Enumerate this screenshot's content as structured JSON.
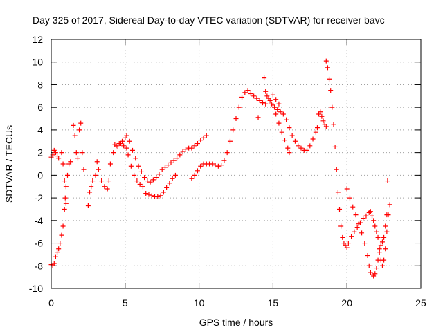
{
  "chart_data": {
    "type": "scatter",
    "title": "Day 325 of 2017, Sidereal Day-to-day VTEC variation (SDTVAR) for receiver bavc",
    "xlabel": "GPS time / hours",
    "ylabel": "SDTVAR / TECUs",
    "xlim": [
      0,
      25
    ],
    "ylim": [
      -10,
      12
    ],
    "xticks": [
      0,
      5,
      10,
      15,
      20,
      25
    ],
    "yticks": [
      -10,
      -8,
      -6,
      -4,
      -2,
      0,
      2,
      4,
      6,
      8,
      10,
      12
    ],
    "grid": true,
    "legend": "none",
    "marker": "plus",
    "color": "#ff0000",
    "series": [
      {
        "points": [
          [
            0.0,
            1.6
          ],
          [
            0.1,
            1.8
          ],
          [
            0.2,
            2.2
          ],
          [
            0.3,
            2.0
          ],
          [
            0.4,
            1.7
          ],
          [
            0.5,
            1.5
          ],
          [
            0.0,
            -7.9
          ],
          [
            0.1,
            -8.0
          ],
          [
            0.2,
            -7.8
          ],
          [
            0.3,
            -7.2
          ],
          [
            0.4,
            -6.8
          ],
          [
            0.5,
            -6.5
          ],
          [
            0.6,
            -6.0
          ],
          [
            0.7,
            -5.3
          ],
          [
            0.8,
            -4.5
          ],
          [
            0.9,
            -3.0
          ],
          [
            0.95,
            -2.0
          ],
          [
            1.0,
            -1.0
          ],
          [
            1.1,
            0.0
          ],
          [
            1.2,
            1.0
          ],
          [
            1.3,
            1.2
          ],
          [
            0.7,
            2.0
          ],
          [
            0.8,
            1.0
          ],
          [
            0.9,
            -0.5
          ],
          [
            1.0,
            -2.5
          ],
          [
            1.5,
            4.4
          ],
          [
            1.6,
            3.5
          ],
          [
            1.7,
            2.0
          ],
          [
            1.8,
            1.5
          ],
          [
            1.9,
            4.0
          ],
          [
            2.0,
            4.6
          ],
          [
            2.1,
            2.0
          ],
          [
            2.2,
            0.5
          ],
          [
            2.5,
            -2.7
          ],
          [
            2.6,
            -1.5
          ],
          [
            2.7,
            -1.0
          ],
          [
            2.8,
            -0.5
          ],
          [
            3.0,
            0.0
          ],
          [
            3.1,
            1.2
          ],
          [
            3.2,
            0.5
          ],
          [
            3.4,
            -0.5
          ],
          [
            3.6,
            -1.0
          ],
          [
            3.8,
            -1.2
          ],
          [
            3.9,
            -0.5
          ],
          [
            4.0,
            1.0
          ],
          [
            4.2,
            2.0
          ],
          [
            4.4,
            2.6
          ],
          [
            4.6,
            2.8
          ],
          [
            4.8,
            3.0
          ],
          [
            5.0,
            3.3
          ],
          [
            5.1,
            3.5
          ],
          [
            5.3,
            3.0
          ],
          [
            5.5,
            2.2
          ],
          [
            5.7,
            1.5
          ],
          [
            5.9,
            0.8
          ],
          [
            6.1,
            0.3
          ],
          [
            6.3,
            -0.2
          ],
          [
            6.5,
            -0.5
          ],
          [
            6.7,
            -0.6
          ],
          [
            6.9,
            -0.4
          ],
          [
            7.1,
            -0.2
          ],
          [
            7.3,
            0.1
          ],
          [
            7.5,
            0.5
          ],
          [
            7.7,
            0.7
          ],
          [
            7.9,
            0.9
          ],
          [
            8.1,
            1.1
          ],
          [
            8.3,
            1.3
          ],
          [
            8.5,
            1.5
          ],
          [
            8.7,
            1.8
          ],
          [
            8.9,
            2.1
          ],
          [
            9.1,
            2.3
          ],
          [
            9.3,
            2.4
          ],
          [
            9.5,
            2.4
          ],
          [
            9.7,
            2.6
          ],
          [
            9.9,
            2.8
          ],
          [
            10.1,
            3.1
          ],
          [
            10.3,
            3.3
          ],
          [
            10.5,
            3.5
          ],
          [
            4.3,
            2.7
          ],
          [
            4.5,
            2.5
          ],
          [
            4.7,
            2.8
          ],
          [
            4.9,
            2.6
          ],
          [
            5.1,
            2.4
          ],
          [
            5.2,
            1.8
          ],
          [
            5.4,
            0.8
          ],
          [
            5.6,
            0.0
          ],
          [
            5.8,
            -0.5
          ],
          [
            6.0,
            -0.8
          ],
          [
            6.2,
            -1.0
          ],
          [
            6.4,
            -1.6
          ],
          [
            6.6,
            -1.7
          ],
          [
            6.8,
            -1.8
          ],
          [
            7.0,
            -1.9
          ],
          [
            7.2,
            -1.9
          ],
          [
            7.4,
            -1.8
          ],
          [
            7.6,
            -1.5
          ],
          [
            7.8,
            -1.1
          ],
          [
            8.0,
            -0.7
          ],
          [
            8.2,
            -0.3
          ],
          [
            8.4,
            0.0
          ],
          [
            9.5,
            -0.3
          ],
          [
            9.7,
            0.0
          ],
          [
            9.9,
            0.4
          ],
          [
            10.1,
            0.8
          ],
          [
            10.3,
            1.0
          ],
          [
            10.5,
            1.0
          ],
          [
            10.7,
            1.0
          ],
          [
            10.9,
            1.0
          ],
          [
            11.1,
            0.9
          ],
          [
            11.3,
            0.8
          ],
          [
            11.5,
            0.9
          ],
          [
            11.7,
            1.3
          ],
          [
            11.9,
            2.0
          ],
          [
            12.1,
            3.0
          ],
          [
            12.3,
            4.0
          ],
          [
            12.5,
            5.0
          ],
          [
            12.7,
            6.0
          ],
          [
            12.9,
            6.9
          ],
          [
            13.1,
            7.3
          ],
          [
            13.3,
            7.5
          ],
          [
            13.5,
            7.2
          ],
          [
            13.7,
            7.0
          ],
          [
            13.9,
            6.8
          ],
          [
            14.1,
            6.6
          ],
          [
            14.3,
            6.4
          ],
          [
            14.5,
            6.3
          ],
          [
            14.6,
            7.0
          ],
          [
            14.8,
            6.6
          ],
          [
            15.0,
            6.2
          ],
          [
            15.2,
            5.4
          ],
          [
            15.4,
            4.6
          ],
          [
            15.6,
            3.8
          ],
          [
            15.8,
            3.1
          ],
          [
            16.0,
            2.4
          ],
          [
            16.1,
            2.0
          ],
          [
            14.0,
            5.1
          ],
          [
            14.4,
            8.6
          ],
          [
            14.5,
            7.4
          ],
          [
            14.7,
            6.8
          ],
          [
            14.9,
            6.3
          ],
          [
            15.1,
            6.0
          ],
          [
            15.3,
            5.8
          ],
          [
            15.5,
            5.6
          ],
          [
            15.7,
            5.4
          ],
          [
            15.9,
            4.9
          ],
          [
            16.1,
            4.2
          ],
          [
            16.3,
            3.5
          ],
          [
            16.5,
            3.0
          ],
          [
            16.7,
            2.6
          ],
          [
            16.9,
            2.4
          ],
          [
            17.1,
            2.2
          ],
          [
            17.3,
            2.2
          ],
          [
            17.5,
            2.6
          ],
          [
            17.7,
            3.2
          ],
          [
            17.9,
            3.8
          ],
          [
            18.0,
            4.2
          ],
          [
            15.0,
            7.1
          ],
          [
            15.2,
            6.7
          ],
          [
            15.4,
            6.3
          ],
          [
            18.1,
            5.4
          ],
          [
            18.2,
            5.6
          ],
          [
            18.3,
            5.2
          ],
          [
            18.4,
            4.8
          ],
          [
            18.5,
            4.5
          ],
          [
            18.6,
            4.3
          ],
          [
            18.6,
            10.1
          ],
          [
            18.7,
            9.5
          ],
          [
            18.8,
            8.5
          ],
          [
            18.9,
            7.5
          ],
          [
            19.0,
            6.0
          ],
          [
            19.1,
            4.5
          ],
          [
            19.2,
            2.5
          ],
          [
            19.3,
            0.5
          ],
          [
            19.4,
            -1.5
          ],
          [
            19.5,
            -3.0
          ],
          [
            19.6,
            -4.5
          ],
          [
            19.7,
            -5.5
          ],
          [
            19.8,
            -6.0
          ],
          [
            19.9,
            -6.2
          ],
          [
            20.0,
            -6.4
          ],
          [
            20.1,
            -6.0
          ],
          [
            20.3,
            -5.4
          ],
          [
            20.5,
            -5.0
          ],
          [
            20.7,
            -4.6
          ],
          [
            20.9,
            -4.2
          ],
          [
            21.1,
            -3.8
          ],
          [
            21.3,
            -3.6
          ],
          [
            21.5,
            -3.3
          ],
          [
            21.6,
            -3.2
          ],
          [
            21.7,
            -3.6
          ],
          [
            21.8,
            -4.0
          ],
          [
            21.9,
            -4.5
          ],
          [
            22.0,
            -5.0
          ],
          [
            22.1,
            -5.5
          ],
          [
            22.2,
            -6.5
          ],
          [
            22.3,
            -7.5
          ],
          [
            22.4,
            -8.0
          ],
          [
            22.5,
            -7.5
          ],
          [
            22.6,
            -6.5
          ],
          [
            22.7,
            -5.0
          ],
          [
            22.8,
            -3.5
          ],
          [
            22.9,
            -2.6
          ],
          [
            20.0,
            -1.2
          ],
          [
            20.2,
            -2.0
          ],
          [
            20.4,
            -2.8
          ],
          [
            20.6,
            -3.5
          ],
          [
            20.8,
            -4.3
          ],
          [
            21.0,
            -5.1
          ],
          [
            21.2,
            -6.0
          ],
          [
            21.4,
            -7.1
          ],
          [
            21.5,
            -8.0
          ],
          [
            21.6,
            -8.6
          ],
          [
            21.7,
            -8.8
          ],
          [
            21.8,
            -8.9
          ],
          [
            21.9,
            -8.7
          ],
          [
            22.0,
            -8.2
          ],
          [
            22.1,
            -7.5
          ],
          [
            22.2,
            -6.8
          ],
          [
            22.3,
            -6.2
          ],
          [
            22.4,
            -5.9
          ],
          [
            22.5,
            -5.5
          ],
          [
            22.6,
            -4.5
          ],
          [
            22.7,
            -3.5
          ],
          [
            22.75,
            -0.5
          ]
        ]
      }
    ]
  }
}
